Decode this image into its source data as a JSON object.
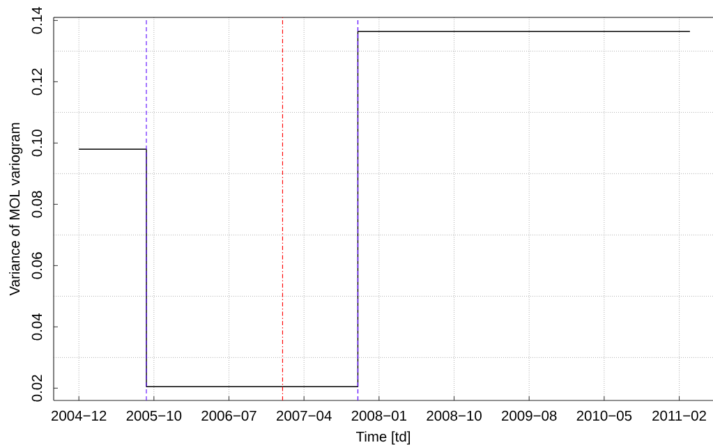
{
  "chart_data": {
    "type": "step",
    "xlabel": "Time [td]",
    "ylabel": "Variance of MOL variogram",
    "x": [
      "2004-12-28",
      "2005-09-06",
      "2007-11-04",
      "2011-03-27"
    ],
    "values": [
      0.098,
      0.0205,
      0.1364,
      0.1364
    ],
    "color": "#000000",
    "xlim": [
      "2004-09-25",
      "2011-06-21"
    ],
    "xticks": [
      {
        "value": "2004-12-28",
        "label": "2004−12"
      },
      {
        "value": "2005-10-04",
        "label": "2005−10"
      },
      {
        "value": "2006-07-11",
        "label": "2006−07"
      },
      {
        "value": "2007-04-17",
        "label": "2007−04"
      },
      {
        "value": "2008-01-22",
        "label": "2008−01"
      },
      {
        "value": "2008-10-28",
        "label": "2008−10"
      },
      {
        "value": "2009-08-04",
        "label": "2009−08"
      },
      {
        "value": "2010-05-11",
        "label": "2010−05"
      },
      {
        "value": "2011-02-15",
        "label": "2011−02"
      }
    ],
    "ylim": [
      0.016,
      0.141
    ],
    "yticks": [
      0.02,
      {
        "value": 0.03,
        "label": null
      },
      0.04,
      {
        "value": 0.05,
        "label": null
      },
      0.06,
      {
        "value": 0.07,
        "label": null
      },
      0.08,
      {
        "value": 0.09,
        "label": null
      },
      {
        "value": 0.1,
        "label": "0.10"
      },
      {
        "value": 0.11,
        "label": null
      },
      0.12,
      {
        "value": 0.13,
        "label": null
      },
      0.14
    ],
    "ref_lines": [
      {
        "axis": "x",
        "value": "2005-09-06",
        "color": "#6010ff",
        "line_style": "dashed"
      },
      {
        "axis": "x",
        "value": "2007-01-27",
        "color": "#ff0000",
        "line_style": "dashdot"
      },
      {
        "axis": "x",
        "value": "2007-11-04",
        "color": "#6010ff",
        "line_style": "dashed"
      }
    ],
    "grid": true
  }
}
